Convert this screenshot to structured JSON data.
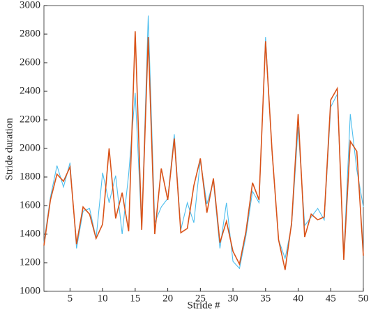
{
  "chart_data": {
    "type": "line",
    "x_label": "Stride #",
    "y_label": "Stride duration",
    "x": [
      1,
      2,
      3,
      4,
      5,
      6,
      7,
      8,
      9,
      10,
      11,
      12,
      13,
      14,
      15,
      16,
      17,
      18,
      19,
      20,
      21,
      22,
      23,
      24,
      25,
      26,
      27,
      28,
      29,
      30,
      31,
      32,
      33,
      34,
      35,
      36,
      37,
      38,
      39,
      40,
      41,
      42,
      43,
      44,
      45,
      46,
      47,
      48,
      49,
      50
    ],
    "series": [
      {
        "color": "#4dbeee",
        "values": [
          1340,
          1660,
          1880,
          1730,
          1900,
          1300,
          1560,
          1580,
          1370,
          1830,
          1620,
          1810,
          1400,
          1820,
          2390,
          1440,
          2930,
          1480,
          1590,
          1650,
          2100,
          1430,
          1620,
          1480,
          1920,
          1610,
          1770,
          1300,
          1620,
          1210,
          1160,
          1390,
          1700,
          1620,
          2780,
          1970,
          1360,
          1230,
          1460,
          2150,
          1460,
          1520,
          1580,
          1500,
          2290,
          2380,
          1240,
          2240,
          1850,
          1590
        ]
      },
      {
        "color": "#d95319",
        "values": [
          1320,
          1640,
          1820,
          1770,
          1870,
          1330,
          1590,
          1540,
          1370,
          1470,
          2000,
          1510,
          1690,
          1420,
          2820,
          1430,
          2780,
          1400,
          1860,
          1640,
          2070,
          1410,
          1440,
          1740,
          1930,
          1550,
          1790,
          1340,
          1490,
          1280,
          1190,
          1420,
          1760,
          1640,
          2750,
          1980,
          1360,
          1150,
          1480,
          2240,
          1380,
          1540,
          1500,
          1520,
          2340,
          2420,
          1220,
          2050,
          1980,
          1250
        ]
      }
    ],
    "xlim": [
      1,
      50
    ],
    "xticks": [
      5,
      10,
      15,
      20,
      25,
      30,
      35,
      40,
      45,
      50
    ],
    "ylim": [
      1000,
      3000
    ],
    "yticks": [
      1000,
      1200,
      1400,
      1600,
      1800,
      2000,
      2200,
      2400,
      2600,
      2800,
      3000
    ],
    "grid": false
  }
}
